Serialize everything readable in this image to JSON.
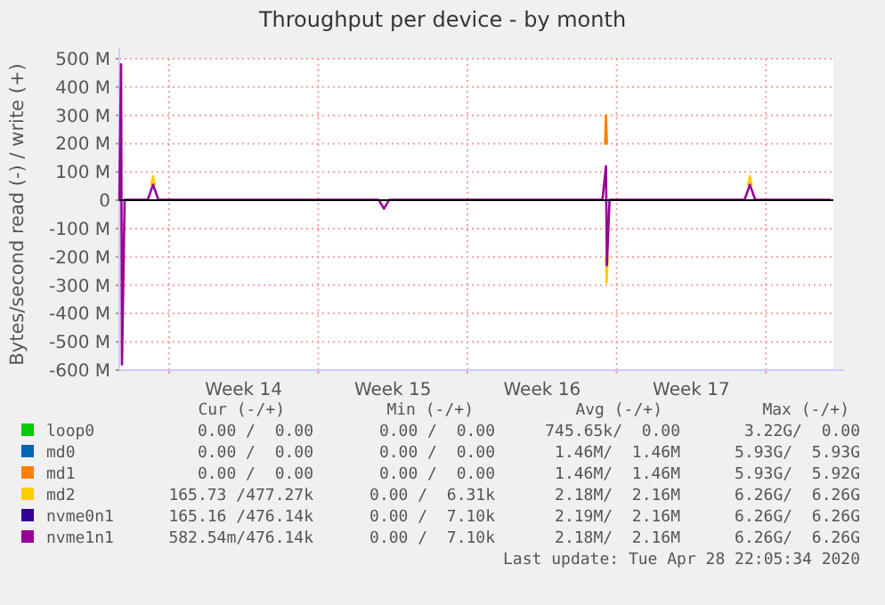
{
  "chart_data": {
    "type": "line",
    "title": "Throughput per device - by month",
    "ylabel": "Bytes/second read (-) / write (+)",
    "xlim": [
      "2020-03-27T16:00",
      "2020-04-30T04:00"
    ],
    "xticks": [
      {
        "value": "2020-03-30T00:00",
        "label": null
      },
      {
        "value": "2020-04-02T12:00",
        "label": "Week 14"
      },
      {
        "value": "2020-04-06T00:00",
        "label": null
      },
      {
        "value": "2020-04-09T12:00",
        "label": "Week 15"
      },
      {
        "value": "2020-04-13T00:00",
        "label": null
      },
      {
        "value": "2020-04-16T12:00",
        "label": "Week 16"
      },
      {
        "value": "2020-04-20T00:00",
        "label": null
      },
      {
        "value": "2020-04-23T12:00",
        "label": "Week 17"
      },
      {
        "value": "2020-04-27T00:00",
        "label": null
      }
    ],
    "ylim": [
      -600,
      500
    ],
    "yticks": [
      {
        "value": -600,
        "label": "-600 M"
      },
      {
        "value": -500,
        "label": "-500 M"
      },
      {
        "value": -400,
        "label": "-400 M"
      },
      {
        "value": -300,
        "label": "-300 M"
      },
      {
        "value": -200,
        "label": "-200 M"
      },
      {
        "value": -100,
        "label": "-100 M"
      },
      0,
      {
        "value": 100,
        "label": "100 M"
      },
      {
        "value": 200,
        "label": "200 M"
      },
      {
        "value": 300,
        "label": "300 M"
      },
      {
        "value": 400,
        "label": "400 M"
      },
      {
        "value": 500,
        "label": "500 M"
      }
    ],
    "grid": true,
    "legend": "bottom",
    "series": [
      {
        "name": "loop0",
        "color": "#00cc00"
      },
      {
        "name": "md0",
        "color": "#0066b3"
      },
      {
        "name": "md1",
        "color": "#ff8000",
        "x": [
          "2020-04-19T11:00",
          "2020-04-19T12:00",
          "2020-04-19T13:00"
        ],
        "values": [
          200,
          300,
          200
        ]
      },
      {
        "name": "md2",
        "color": "#ffcc00",
        "x": [
          "2020-03-29T04:00",
          "2020-03-29T06:00",
          "2020-03-29T08:00",
          "2020-04-10T00:00",
          "2020-04-19T12:00",
          "2020-04-19T12:40",
          "2020-04-19T14:00",
          "2020-04-22T00:00",
          "2020-04-26T04:00",
          "2020-04-26T06:00",
          "2020-04-26T08:00"
        ],
        "values": [
          55,
          85,
          55,
          null,
          -200,
          -290,
          -200,
          null,
          55,
          85,
          55
        ]
      },
      {
        "name": "nvme0n1",
        "color": "#330099"
      },
      {
        "name": "nvme1n1",
        "color": "#990099",
        "x": [
          "2020-03-27T16:00",
          "2020-03-27T18:00",
          "2020-03-27T19:00",
          "2020-03-27T22:00",
          "2020-03-29T00:00",
          "2020-03-29T06:00",
          "2020-03-29T12:00",
          "2020-04-08T20:00",
          "2020-04-09T02:00",
          "2020-04-09T08:00",
          "2020-04-19T08:00",
          "2020-04-19T12:00",
          "2020-04-19T13:00",
          "2020-04-19T16:00",
          "2020-04-26T00:00",
          "2020-04-26T06:00",
          "2020-04-26T12:00",
          "2020-04-30T00:00"
        ],
        "values": [
          2,
          480,
          -580,
          2,
          2,
          55,
          2,
          2,
          -30,
          2,
          2,
          120,
          -230,
          2,
          2,
          55,
          2,
          2
        ]
      }
    ],
    "annotations": [
      "Cur (-/+)",
      "Min (-/+)",
      "Avg (-/+)",
      "Max (-/+)",
      "0.00 /  0.00",
      "0.00 /  0.00",
      "745.65k/  0.00",
      "3.22G/  0.00",
      "0.00 /  0.00",
      "0.00 /  0.00",
      "1.46M/  1.46M",
      "5.93G/  5.93G",
      "0.00 /  0.00",
      "0.00 /  0.00",
      "1.46M/  1.46M",
      "5.93G/  5.92G",
      "165.73 /477.27k",
      "0.00 /  6.31k",
      "2.18M/  2.16M",
      "6.26G/  6.26G",
      "165.16 /476.14k",
      "0.00 /  7.10k",
      "2.19M/  2.16M",
      "6.26G/  6.26G",
      "582.54m/476.14k",
      "0.00 /  7.10k",
      "2.18M/  2.16M",
      "6.26G/  6.26G",
      "Last update: Tue Apr 28 22:05:34 2020"
    ]
  }
}
